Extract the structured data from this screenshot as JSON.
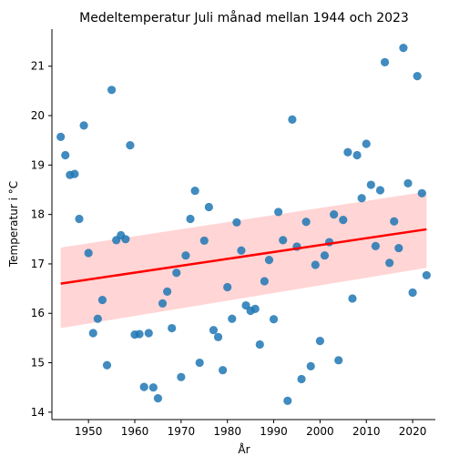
{
  "chart_data": {
    "type": "scatter",
    "title": "Medeltemperatur Juli månad mellan 1944 och 2023",
    "xlabel": "År",
    "ylabel": "Temperatur i °C",
    "xlim": [
      1942.1,
      2024.9
    ],
    "ylim": [
      13.85,
      21.75
    ],
    "xticks": [
      1950,
      1960,
      1970,
      1980,
      1990,
      2000,
      2010,
      2020
    ],
    "yticks": [
      14,
      15,
      16,
      17,
      18,
      19,
      20,
      21
    ],
    "grid": false,
    "colors": {
      "points": "#1f77b4",
      "regression": "#ff0000",
      "band": "#ffb3b3"
    },
    "regression": {
      "x": [
        1944,
        2023
      ],
      "y": [
        16.6,
        17.7
      ],
      "ci_lower": [
        15.7,
        16.92
      ],
      "ci_upper": [
        17.33,
        18.46
      ]
    },
    "points": [
      {
        "x": 1944,
        "y": 19.57
      },
      {
        "x": 1945,
        "y": 19.2
      },
      {
        "x": 1946,
        "y": 18.8
      },
      {
        "x": 1947,
        "y": 18.82
      },
      {
        "x": 1948,
        "y": 17.91
      },
      {
        "x": 1949,
        "y": 19.8
      },
      {
        "x": 1950,
        "y": 17.22
      },
      {
        "x": 1951,
        "y": 15.6
      },
      {
        "x": 1952,
        "y": 15.89
      },
      {
        "x": 1953,
        "y": 16.27
      },
      {
        "x": 1954,
        "y": 14.95
      },
      {
        "x": 1955,
        "y": 20.52
      },
      {
        "x": 1956,
        "y": 17.48
      },
      {
        "x": 1957,
        "y": 17.58
      },
      {
        "x": 1958,
        "y": 17.5
      },
      {
        "x": 1959,
        "y": 19.4
      },
      {
        "x": 1960,
        "y": 15.57
      },
      {
        "x": 1961,
        "y": 15.58
      },
      {
        "x": 1962,
        "y": 14.51
      },
      {
        "x": 1963,
        "y": 15.6
      },
      {
        "x": 1964,
        "y": 14.5
      },
      {
        "x": 1965,
        "y": 14.28
      },
      {
        "x": 1966,
        "y": 16.2
      },
      {
        "x": 1967,
        "y": 16.44
      },
      {
        "x": 1968,
        "y": 15.7
      },
      {
        "x": 1969,
        "y": 16.82
      },
      {
        "x": 1970,
        "y": 14.71
      },
      {
        "x": 1971,
        "y": 17.17
      },
      {
        "x": 1972,
        "y": 17.91
      },
      {
        "x": 1973,
        "y": 18.48
      },
      {
        "x": 1974,
        "y": 15.0
      },
      {
        "x": 1975,
        "y": 17.47
      },
      {
        "x": 1976,
        "y": 18.15
      },
      {
        "x": 1977,
        "y": 15.66
      },
      {
        "x": 1978,
        "y": 15.52
      },
      {
        "x": 1979,
        "y": 14.85
      },
      {
        "x": 1980,
        "y": 16.53
      },
      {
        "x": 1981,
        "y": 15.89
      },
      {
        "x": 1982,
        "y": 17.84
      },
      {
        "x": 1983,
        "y": 17.27
      },
      {
        "x": 1984,
        "y": 16.16
      },
      {
        "x": 1985,
        "y": 16.05
      },
      {
        "x": 1986,
        "y": 16.09
      },
      {
        "x": 1987,
        "y": 15.37
      },
      {
        "x": 1988,
        "y": 16.65
      },
      {
        "x": 1989,
        "y": 17.08
      },
      {
        "x": 1990,
        "y": 15.88
      },
      {
        "x": 1991,
        "y": 18.05
      },
      {
        "x": 1992,
        "y": 17.48
      },
      {
        "x": 1993,
        "y": 14.23
      },
      {
        "x": 1994,
        "y": 19.92
      },
      {
        "x": 1995,
        "y": 17.35
      },
      {
        "x": 1996,
        "y": 14.67
      },
      {
        "x": 1997,
        "y": 17.85
      },
      {
        "x": 1998,
        "y": 14.93
      },
      {
        "x": 1999,
        "y": 16.98
      },
      {
        "x": 2000,
        "y": 15.44
      },
      {
        "x": 2001,
        "y": 17.17
      },
      {
        "x": 2002,
        "y": 17.44
      },
      {
        "x": 2003,
        "y": 18.0
      },
      {
        "x": 2004,
        "y": 15.05
      },
      {
        "x": 2005,
        "y": 17.89
      },
      {
        "x": 2006,
        "y": 19.26
      },
      {
        "x": 2007,
        "y": 16.3
      },
      {
        "x": 2008,
        "y": 19.2
      },
      {
        "x": 2009,
        "y": 18.33
      },
      {
        "x": 2010,
        "y": 19.43
      },
      {
        "x": 2011,
        "y": 18.6
      },
      {
        "x": 2012,
        "y": 17.36
      },
      {
        "x": 2013,
        "y": 18.49
      },
      {
        "x": 2014,
        "y": 21.08
      },
      {
        "x": 2015,
        "y": 17.02
      },
      {
        "x": 2016,
        "y": 17.86
      },
      {
        "x": 2017,
        "y": 17.32
      },
      {
        "x": 2018,
        "y": 21.37
      },
      {
        "x": 2019,
        "y": 18.63
      },
      {
        "x": 2020,
        "y": 16.42
      },
      {
        "x": 2021,
        "y": 20.8
      },
      {
        "x": 2022,
        "y": 18.43
      },
      {
        "x": 2023,
        "y": 16.77
      }
    ]
  }
}
